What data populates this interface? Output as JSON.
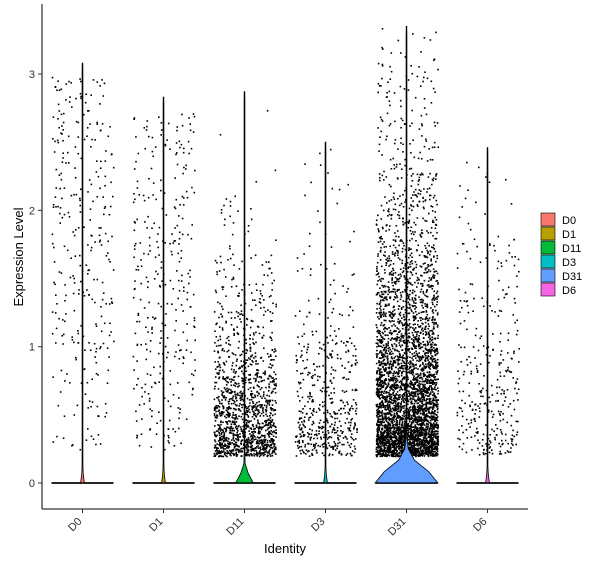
{
  "chart_data": {
    "type": "violin",
    "title": "",
    "xlabel": "Identity",
    "ylabel": "Expression Level",
    "ylim": [
      -0.17,
      3.5
    ],
    "yticks": [
      0,
      1,
      2,
      3
    ],
    "categories": [
      "D0",
      "D1",
      "D11",
      "D3",
      "D31",
      "D6"
    ],
    "grid": false,
    "legend_position": "right",
    "series": [
      {
        "name": "D0",
        "color": "#F8766D",
        "max": 3.08,
        "nonzero_points": 300,
        "density_at_zero": 0.02,
        "mean_nonzero": 1.3
      },
      {
        "name": "D1",
        "color": "#B79F00",
        "max": 2.83,
        "nonzero_points": 320,
        "density_at_zero": 0.02,
        "mean_nonzero": 1.2
      },
      {
        "name": "D11",
        "color": "#00BA38",
        "max": 2.87,
        "nonzero_points": 1400,
        "density_at_zero": 0.25,
        "mean_nonzero": 0.6
      },
      {
        "name": "D3",
        "color": "#00BFC4",
        "max": 2.5,
        "nonzero_points": 500,
        "density_at_zero": 0.02,
        "mean_nonzero": 0.7
      },
      {
        "name": "D31",
        "color": "#619CFF",
        "max": 3.35,
        "nonzero_points": 4200,
        "density_at_zero": 1.0,
        "mean_nonzero": 0.9
      },
      {
        "name": "D6",
        "color": "#F564E3",
        "max": 2.46,
        "nonzero_points": 330,
        "density_at_zero": 0.02,
        "mean_nonzero": 0.9
      }
    ]
  }
}
